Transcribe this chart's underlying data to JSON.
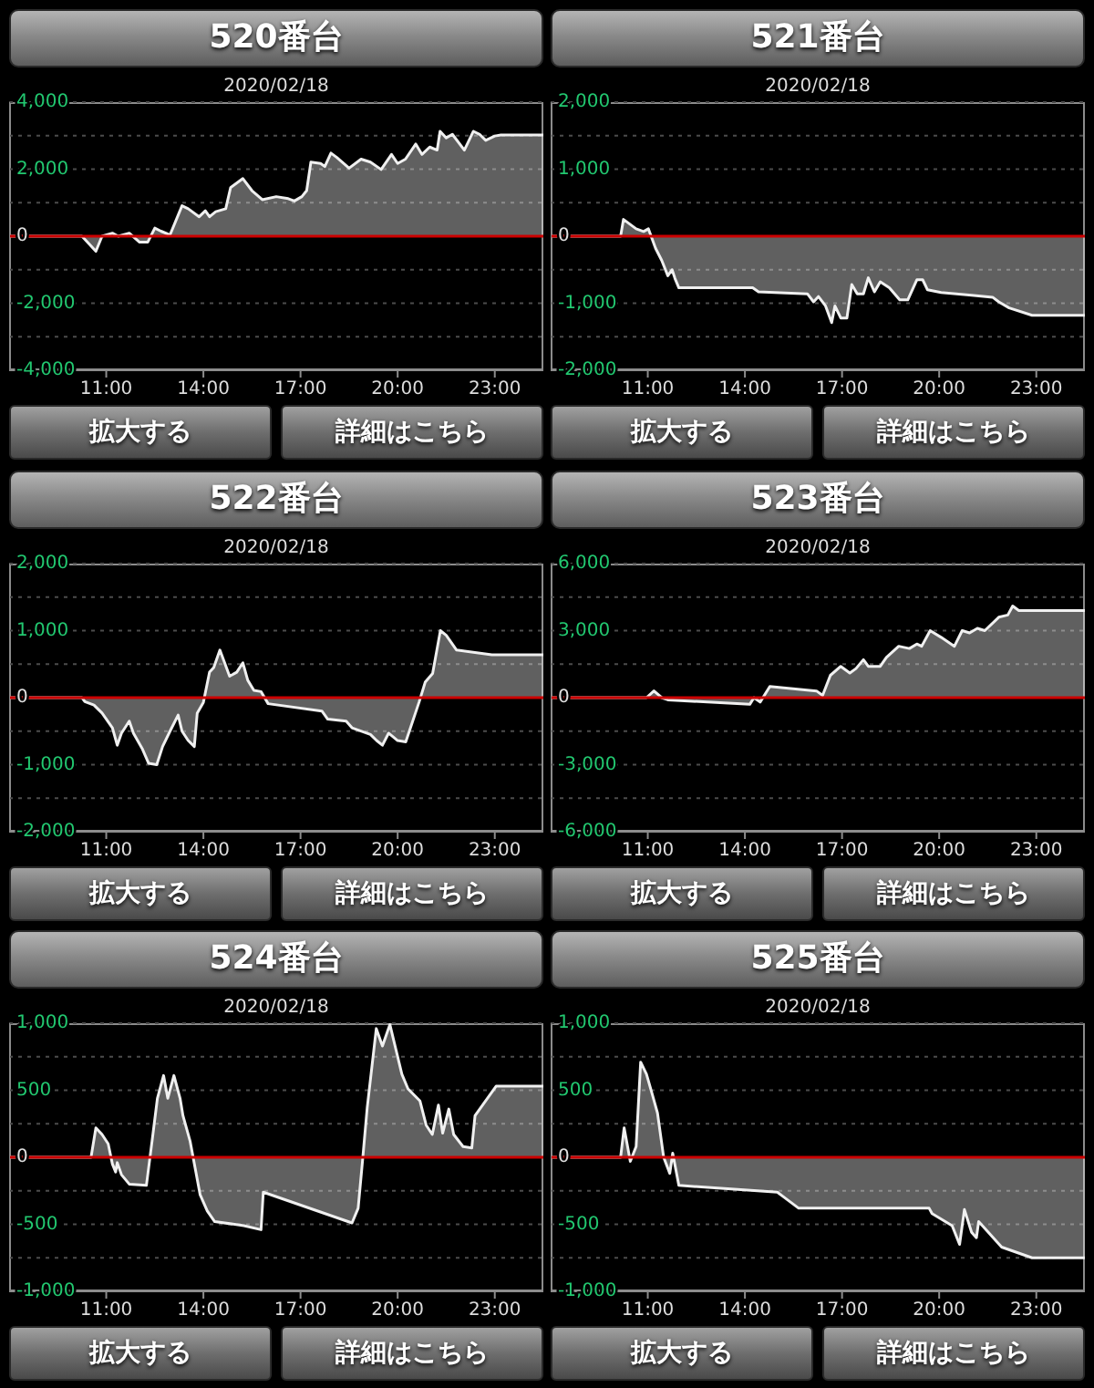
{
  "chart_data": [
    {
      "type": "area",
      "title": "520番台",
      "subtitle": "2020/02/18",
      "x": [
        8,
        10.25,
        10.68,
        10.87,
        11.19,
        11.37,
        11.71,
        12.03,
        12.28,
        12.5,
        12.69,
        12.97,
        13.34,
        13.53,
        13.87,
        14.06,
        14.19,
        14.38,
        14.69,
        14.84,
        15.22,
        15.5,
        15.82,
        16.25,
        16.62,
        16.81,
        17.04,
        17.19,
        17.32,
        17.62,
        17.75,
        17.94,
        18.12,
        18.5,
        18.87,
        19.16,
        19.49,
        19.81,
        20,
        20.24,
        20.56,
        20.75,
        20.99,
        21.22,
        21.31,
        21.5,
        21.69,
        22.06,
        22.34,
        22.53,
        22.72,
        23,
        23.19,
        24.5
      ],
      "values": [
        0,
        0,
        -450,
        0,
        90,
        0,
        90,
        -180,
        -180,
        240,
        150,
        40,
        910,
        820,
        580,
        760,
        580,
        730,
        820,
        1450,
        1720,
        1360,
        1090,
        1180,
        1120,
        1050,
        1180,
        1360,
        2210,
        2170,
        2080,
        2480,
        2350,
        2030,
        2300,
        2210,
        1990,
        2440,
        2170,
        2300,
        2750,
        2440,
        2660,
        2570,
        3130,
        2930,
        3040,
        2570,
        3130,
        3040,
        2860,
        2990,
        3020,
        3020
      ],
      "color": "#f0f0f0",
      "xlim": [
        8,
        24.5
      ],
      "xticks": [
        {
          "value": 11,
          "label": "11:00"
        },
        {
          "value": 14,
          "label": "14:00"
        },
        {
          "value": 17,
          "label": "17:00"
        },
        {
          "value": 20,
          "label": "20:00"
        },
        {
          "value": 23,
          "label": "23:00"
        }
      ],
      "ylim": [
        -4000,
        4000
      ],
      "yticks": [
        {
          "value": 4000,
          "label": "4,000"
        },
        {
          "value": 3000,
          "label": null
        },
        {
          "value": 2000,
          "label": "2,000"
        },
        {
          "value": 1000,
          "label": null
        },
        0,
        {
          "value": -1000,
          "label": null
        },
        {
          "value": -2000,
          "label": "-2,000"
        },
        {
          "value": -3000,
          "label": null
        },
        {
          "value": -4000,
          "label": "-4,000"
        }
      ],
      "grid": "y",
      "ref_lines": [
        {
          "axis": "y",
          "value": 0,
          "color": "#cc0000"
        }
      ],
      "annotations": [
        "拡大する",
        "詳細はこちら"
      ]
    },
    {
      "type": "area",
      "title": "521番台",
      "subtitle": "2020/02/18",
      "x": [
        8,
        10.16,
        10.25,
        10.64,
        10.87,
        11.02,
        11.24,
        11.43,
        11.62,
        11.75,
        11.84,
        11.96,
        14.24,
        14.42,
        15.93,
        16.12,
        16.27,
        16.49,
        16.68,
        16.78,
        16.96,
        17.15,
        17.3,
        17.47,
        17.66,
        17.81,
        18,
        18.18,
        18.46,
        18.78,
        19.03,
        19.31,
        19.49,
        19.64,
        20.06,
        21,
        21.65,
        21.84,
        22.16,
        22.87,
        24.5
      ],
      "values": [
        0,
        0,
        250,
        110,
        70,
        110,
        -180,
        -360,
        -590,
        -500,
        -630,
        -770,
        -770,
        -830,
        -860,
        -980,
        -900,
        -1040,
        -1290,
        -1040,
        -1220,
        -1220,
        -720,
        -860,
        -860,
        -620,
        -830,
        -680,
        -770,
        -950,
        -950,
        -650,
        -650,
        -800,
        -840,
        -880,
        -910,
        -980,
        -1070,
        -1180,
        -1180
      ],
      "color": "#f0f0f0",
      "xlim": [
        8,
        24.5
      ],
      "xticks": [
        {
          "value": 11,
          "label": "11:00"
        },
        {
          "value": 14,
          "label": "14:00"
        },
        {
          "value": 17,
          "label": "17:00"
        },
        {
          "value": 20,
          "label": "20:00"
        },
        {
          "value": 23,
          "label": "23:00"
        }
      ],
      "ylim": [
        -2000,
        2000
      ],
      "yticks": [
        {
          "value": 2000,
          "label": "2,000"
        },
        {
          "value": 1500,
          "label": null
        },
        {
          "value": 1000,
          "label": "1,000"
        },
        {
          "value": 500,
          "label": null
        },
        0,
        {
          "value": -500,
          "label": null
        },
        {
          "value": -1000,
          "label": "-1,000"
        },
        {
          "value": -1500,
          "label": null
        },
        {
          "value": -2000,
          "label": "-2,000"
        }
      ],
      "grid": "y",
      "ref_lines": [
        {
          "axis": "y",
          "value": 0,
          "color": "#cc0000"
        }
      ],
      "annotations": [
        "拡大する",
        "詳細はこちら"
      ]
    },
    {
      "type": "area",
      "title": "522番台",
      "subtitle": "2020/02/18",
      "x": [
        8,
        10.25,
        10.34,
        10.62,
        10.87,
        11.19,
        11.34,
        11.47,
        11.71,
        11.84,
        12.12,
        12.31,
        12.56,
        12.74,
        12.97,
        13.22,
        13.34,
        13.53,
        13.72,
        13.81,
        14,
        14.19,
        14.32,
        14.51,
        14.81,
        15.03,
        15.22,
        15.37,
        15.56,
        15.78,
        16,
        17.66,
        17.84,
        18.41,
        18.59,
        19.16,
        19.35,
        19.53,
        19.72,
        20,
        20.25,
        20.66,
        20.85,
        21.08,
        21.32,
        21.5,
        21.82,
        22.91,
        24.5
      ],
      "values": [
        0,
        0,
        -60,
        -110,
        -230,
        -450,
        -710,
        -530,
        -350,
        -530,
        -770,
        -980,
        -1000,
        -730,
        -500,
        -260,
        -500,
        -640,
        -730,
        -230,
        -70,
        380,
        450,
        710,
        320,
        380,
        520,
        260,
        110,
        90,
        -90,
        -200,
        -320,
        -350,
        -450,
        -550,
        -640,
        -710,
        -530,
        -640,
        -660,
        -70,
        230,
        360,
        1000,
        930,
        710,
        640,
        640
      ],
      "color": "#f0f0f0",
      "xlim": [
        8,
        24.5
      ],
      "xticks": [
        {
          "value": 11,
          "label": "11:00"
        },
        {
          "value": 14,
          "label": "14:00"
        },
        {
          "value": 17,
          "label": "17:00"
        },
        {
          "value": 20,
          "label": "20:00"
        },
        {
          "value": 23,
          "label": "23:00"
        }
      ],
      "ylim": [
        -2000,
        2000
      ],
      "yticks": [
        {
          "value": 2000,
          "label": "2,000"
        },
        {
          "value": 1500,
          "label": null
        },
        {
          "value": 1000,
          "label": "1,000"
        },
        {
          "value": 500,
          "label": null
        },
        0,
        {
          "value": -500,
          "label": null
        },
        {
          "value": -1000,
          "label": "-1,000"
        },
        {
          "value": -1500,
          "label": null
        },
        {
          "value": -2000,
          "label": "-2,000"
        }
      ],
      "grid": "y",
      "ref_lines": [
        {
          "axis": "y",
          "value": 0,
          "color": "#cc0000"
        }
      ],
      "annotations": [
        "拡大する",
        "詳細はこちら"
      ]
    },
    {
      "type": "area",
      "title": "523番台",
      "subtitle": "2020/02/18",
      "x": [
        8,
        10.96,
        11.19,
        11.43,
        11.62,
        14.15,
        14.28,
        14.47,
        14.77,
        16.21,
        16.4,
        16.64,
        16.96,
        17.24,
        17.43,
        17.66,
        17.81,
        18.18,
        18.37,
        18.75,
        19.08,
        19.31,
        19.46,
        19.72,
        20.06,
        20.47,
        20.71,
        20.94,
        21.18,
        21.41,
        21.84,
        22.12,
        22.27,
        22.46,
        24.5
      ],
      "values": [
        0,
        0,
        300,
        0,
        -100,
        -300,
        0,
        -200,
        500,
        300,
        100,
        1000,
        1400,
        1100,
        1300,
        1700,
        1400,
        1400,
        1800,
        2300,
        2200,
        2400,
        2300,
        3000,
        2700,
        2300,
        3000,
        2900,
        3100,
        3000,
        3600,
        3700,
        4100,
        3900,
        3900
      ],
      "color": "#f0f0f0",
      "xlim": [
        8,
        24.5
      ],
      "xticks": [
        {
          "value": 11,
          "label": "11:00"
        },
        {
          "value": 14,
          "label": "14:00"
        },
        {
          "value": 17,
          "label": "17:00"
        },
        {
          "value": 20,
          "label": "20:00"
        },
        {
          "value": 23,
          "label": "23:00"
        }
      ],
      "ylim": [
        -6000,
        6000
      ],
      "yticks": [
        {
          "value": 6000,
          "label": "6,000"
        },
        {
          "value": 4500,
          "label": null
        },
        {
          "value": 3000,
          "label": "3,000"
        },
        {
          "value": 1500,
          "label": null
        },
        0,
        {
          "value": -1500,
          "label": null
        },
        {
          "value": -3000,
          "label": "-3,000"
        },
        {
          "value": -4500,
          "label": null
        },
        {
          "value": -6000,
          "label": "-6,000"
        }
      ],
      "grid": "y",
      "ref_lines": [
        {
          "axis": "y",
          "value": 0,
          "color": "#cc0000"
        }
      ],
      "annotations": [
        "拡大する",
        "詳細はこちら"
      ]
    },
    {
      "type": "area",
      "title": "524番台",
      "subtitle": "2020/02/18",
      "x": [
        8,
        10.53,
        10.68,
        10.87,
        11.06,
        11.19,
        11.29,
        11.34,
        11.47,
        11.71,
        12.24,
        12.43,
        12.58,
        12.77,
        12.9,
        13.09,
        13.28,
        13.37,
        13.59,
        13.9,
        14.12,
        14.35,
        15.25,
        15.78,
        15.85,
        18.59,
        18.78,
        18.91,
        19.06,
        19.34,
        19.53,
        19.76,
        20.13,
        20.32,
        20.69,
        20.88,
        21.07,
        21.26,
        21.39,
        21.58,
        21.73,
        22.02,
        22.29,
        22.39,
        23.04,
        24.5
      ],
      "values": [
        0,
        0,
        220,
        170,
        100,
        -50,
        -110,
        -40,
        -130,
        -200,
        -210,
        150,
        440,
        610,
        440,
        610,
        440,
        310,
        120,
        -280,
        -400,
        -480,
        -510,
        -540,
        -260,
        -490,
        -380,
        -40,
        370,
        960,
        830,
        990,
        620,
        510,
        420,
        240,
        170,
        390,
        180,
        360,
        170,
        80,
        70,
        310,
        530,
        530
      ],
      "color": "#f0f0f0",
      "xlim": [
        8,
        24.5
      ],
      "xticks": [
        {
          "value": 11,
          "label": "11:00"
        },
        {
          "value": 14,
          "label": "14:00"
        },
        {
          "value": 17,
          "label": "17:00"
        },
        {
          "value": 20,
          "label": "20:00"
        },
        {
          "value": 23,
          "label": "23:00"
        }
      ],
      "ylim": [
        -1000,
        1000
      ],
      "yticks": [
        {
          "value": 1000,
          "label": "1,000"
        },
        {
          "value": 750,
          "label": null
        },
        500,
        {
          "value": 250,
          "label": null
        },
        0,
        {
          "value": -250,
          "label": null
        },
        -500,
        {
          "value": -750,
          "label": null
        },
        {
          "value": -1000,
          "label": "-1,000"
        }
      ],
      "grid": "y",
      "ref_lines": [
        {
          "axis": "y",
          "value": 0,
          "color": "#cc0000"
        }
      ],
      "annotations": [
        "拡大する",
        "詳細はこちら"
      ]
    },
    {
      "type": "area",
      "title": "525番台",
      "subtitle": "2020/02/18",
      "x": [
        8,
        10.16,
        10.27,
        10.46,
        10.64,
        10.78,
        10.96,
        11.15,
        11.3,
        11.49,
        11.68,
        11.77,
        11.96,
        15,
        15.22,
        15.66,
        19.69,
        19.78,
        20.4,
        20.63,
        20.78,
        21,
        21.15,
        21.22,
        21.93,
        22.87,
        24.5
      ],
      "values": [
        0,
        0,
        220,
        -30,
        80,
        710,
        620,
        460,
        330,
        0,
        -120,
        30,
        -210,
        -260,
        -300,
        -380,
        -380,
        -420,
        -510,
        -650,
        -390,
        -560,
        -600,
        -480,
        -670,
        -750,
        -750
      ],
      "color": "#f0f0f0",
      "xlim": [
        8,
        24.5
      ],
      "xticks": [
        {
          "value": 11,
          "label": "11:00"
        },
        {
          "value": 14,
          "label": "14:00"
        },
        {
          "value": 17,
          "label": "17:00"
        },
        {
          "value": 20,
          "label": "20:00"
        },
        {
          "value": 23,
          "label": "23:00"
        }
      ],
      "ylim": [
        -1000,
        1000
      ],
      "yticks": [
        {
          "value": 1000,
          "label": "1,000"
        },
        {
          "value": 750,
          "label": null
        },
        500,
        {
          "value": 250,
          "label": null
        },
        0,
        {
          "value": -250,
          "label": null
        },
        -500,
        {
          "value": -750,
          "label": null
        },
        {
          "value": -1000,
          "label": "-1,000"
        }
      ],
      "grid": "y",
      "ref_lines": [
        {
          "axis": "y",
          "value": 0,
          "color": "#cc0000"
        }
      ],
      "annotations": [
        "拡大する",
        "詳細はこちら"
      ]
    }
  ]
}
